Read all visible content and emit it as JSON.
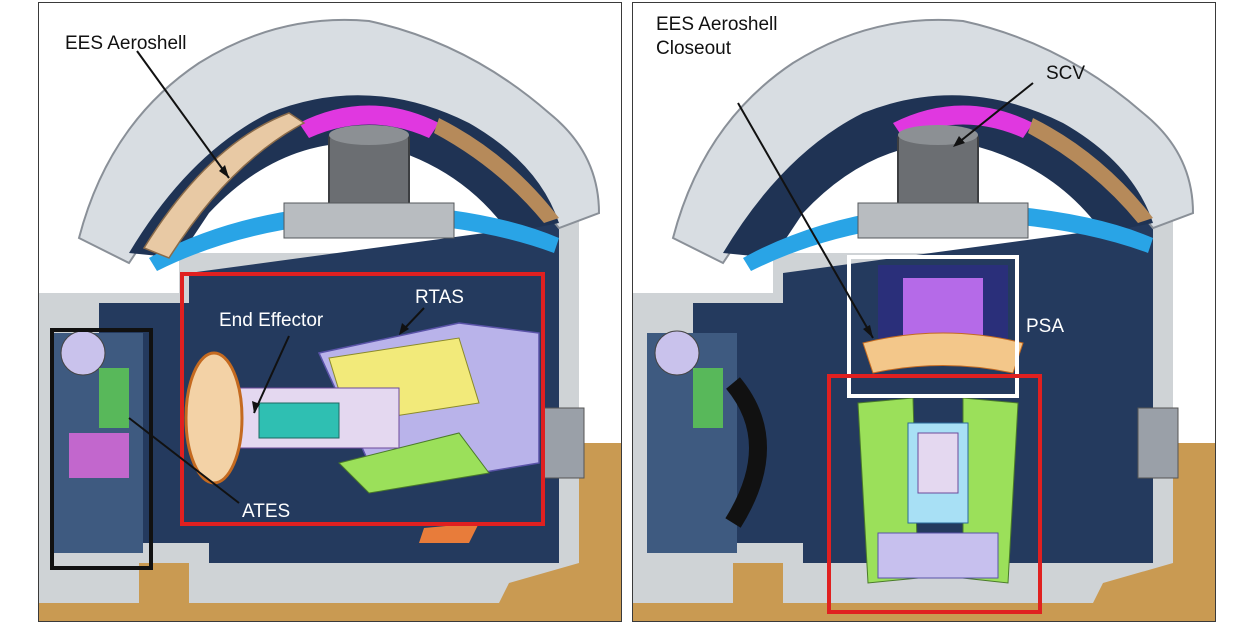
{
  "left_panel": {
    "labels": {
      "aeroshell": "EES Aeroshell",
      "end_effector": "End Effector",
      "rtas": "RTAS",
      "ates": "ATES"
    }
  },
  "right_panel": {
    "labels": {
      "aeroshell_closeout_line1": "EES Aeroshell",
      "aeroshell_closeout_line2": "Closeout",
      "scv": "SCV",
      "psa": "PSA"
    }
  },
  "colors": {
    "chamber_dark_blue": "#243a5e",
    "highlight_red": "#e02020",
    "highlight_black": "#111111",
    "highlight_white": "#ffffff",
    "floor_tan": "#c99a52",
    "aeroshell_tan": "#e8c9a4",
    "shell_grey": "#cfd3d6"
  }
}
